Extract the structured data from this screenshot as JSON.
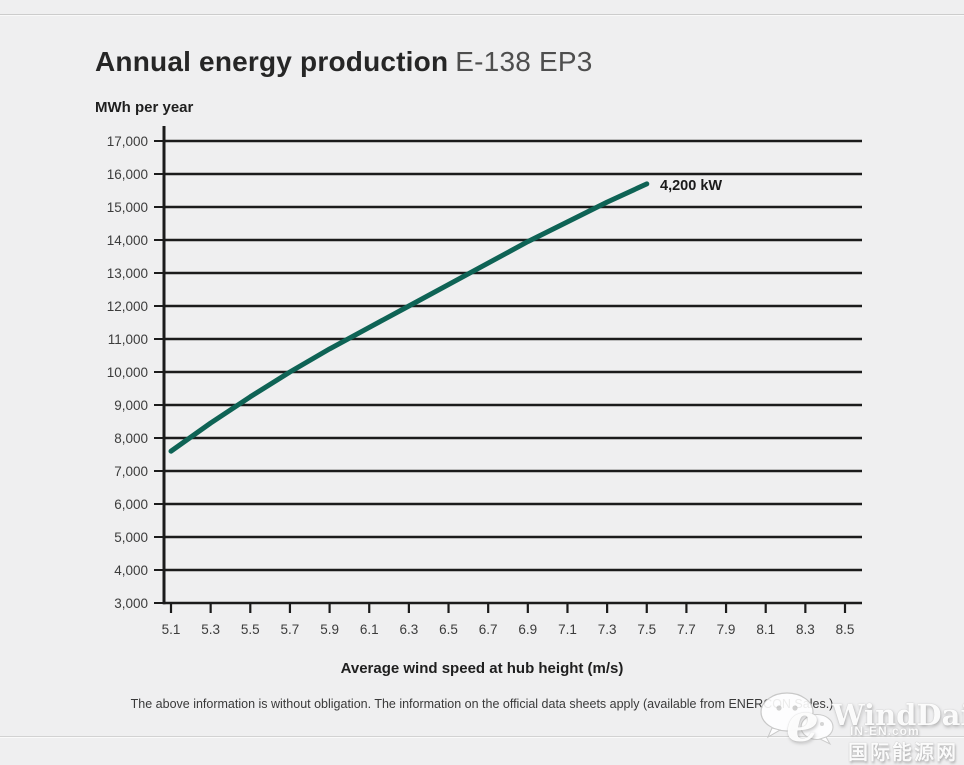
{
  "header": {
    "title": "Annual energy production",
    "model": "E-138 EP3"
  },
  "chart_data": {
    "type": "line",
    "title": "Annual energy production E-138 EP3",
    "ylabel": "MWh per year",
    "xlabel": "Average wind speed at hub height (m/s)",
    "xlim": [
      5.1,
      8.5
    ],
    "ylim": [
      3000,
      17000
    ],
    "grid": "horizontal gridlines at every 1,000 MWh",
    "legend_position": "annotation at end of line",
    "x_ticks": [
      5.1,
      5.3,
      5.5,
      5.7,
      5.9,
      6.1,
      6.3,
      6.5,
      6.7,
      6.9,
      7.1,
      7.3,
      7.5,
      7.7,
      7.9,
      8.1,
      8.3,
      8.5
    ],
    "y_ticks": [
      3000,
      4000,
      5000,
      6000,
      7000,
      8000,
      9000,
      10000,
      11000,
      12000,
      13000,
      14000,
      15000,
      16000,
      17000
    ],
    "series": [
      {
        "name": "4,200 kW",
        "x": [
          5.1,
          5.3,
          5.5,
          5.7,
          5.9,
          6.1,
          6.3,
          6.5,
          6.7,
          6.9,
          7.1,
          7.3,
          7.5
        ],
        "values": [
          7600,
          8450,
          9250,
          10000,
          10700,
          11350,
          12000,
          12650,
          13300,
          13950,
          14550,
          15150,
          15700
        ],
        "color": "#0e6355"
      }
    ]
  },
  "footer": {
    "disclaimer": "The above information is without obligation. The information on the official data sheets apply (available from ENERCON Sales.)"
  },
  "watermark": {
    "brand": "WindDaily",
    "site": "IN-EN.com",
    "site_cn": "国际能源网",
    "elogo_glyph": "e"
  },
  "colors": {
    "page_background": "#efeff0",
    "grid": "#1b1b1b",
    "tick_text": "#3c3c3c",
    "accent_line": "#0e6355",
    "title_main": "#262626",
    "title_model": "#4e4e4e"
  }
}
